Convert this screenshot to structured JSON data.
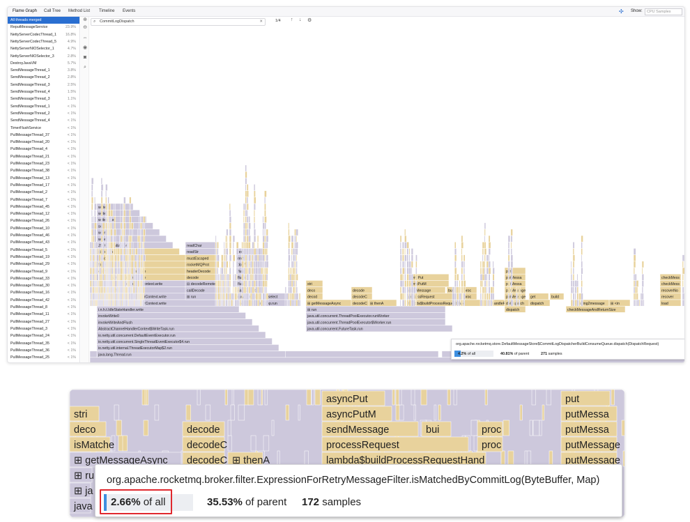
{
  "tabs": [
    "Flame Graph",
    "Call Tree",
    "Method List",
    "Timeline",
    "Events"
  ],
  "show": {
    "label": "Show:",
    "value": "CPU Samples"
  },
  "threads": [
    {
      "name": "All threads merged",
      "pct": ""
    },
    {
      "name": "ReputMessageService",
      "pct": "23.9%"
    },
    {
      "name": "NettyServerCodecThread_1",
      "pct": "16.8%"
    },
    {
      "name": "NettyServerCodecThread_5",
      "pct": "4.9%"
    },
    {
      "name": "NettyServerNIOSelector_1",
      "pct": "4.7%"
    },
    {
      "name": "NettyServerNIOSelector_3",
      "pct": "2.8%"
    },
    {
      "name": "DestroyJavaVM",
      "pct": "5.7%"
    },
    {
      "name": "SendMessageThread_1",
      "pct": "3.8%"
    },
    {
      "name": "SendMessageThread_2",
      "pct": "2.8%"
    },
    {
      "name": "SendMessageThread_3",
      "pct": "2.5%"
    },
    {
      "name": "SendMessageThread_4",
      "pct": "1.5%"
    },
    {
      "name": "SendMessageThread_3",
      "pct": "1.1%"
    },
    {
      "name": "SendMessageThread_1",
      "pct": "< 1%"
    },
    {
      "name": "SendMessageThread_2",
      "pct": "< 1%"
    },
    {
      "name": "SendMessageThread_4",
      "pct": "< 1%"
    },
    {
      "name": "TimerFlushService",
      "pct": "< 1%"
    },
    {
      "name": "PullMessageThread_37",
      "pct": "< 1%"
    },
    {
      "name": "PullMessageThread_20",
      "pct": "< 1%"
    },
    {
      "name": "PullMessageThread_4",
      "pct": "< 1%"
    },
    {
      "name": "PullMessageThread_21",
      "pct": "< 1%"
    },
    {
      "name": "PullMessageThread_23",
      "pct": "< 1%"
    },
    {
      "name": "PullMessageThread_38",
      "pct": "< 1%"
    },
    {
      "name": "PullMessageThread_13",
      "pct": "< 1%"
    },
    {
      "name": "PullMessageThread_17",
      "pct": "< 1%"
    },
    {
      "name": "PullMessageThread_2",
      "pct": "< 1%"
    },
    {
      "name": "PullMessageThread_7",
      "pct": "< 1%"
    },
    {
      "name": "PullMessageThread_45",
      "pct": "< 1%"
    },
    {
      "name": "PullMessageThread_12",
      "pct": "< 1%"
    },
    {
      "name": "PullMessageThread_26",
      "pct": "< 1%"
    },
    {
      "name": "PullMessageThread_10",
      "pct": "< 1%"
    },
    {
      "name": "PullMessageThread_46",
      "pct": "< 1%"
    },
    {
      "name": "PullMessageThread_43",
      "pct": "< 1%"
    },
    {
      "name": "PullMessageThread_5",
      "pct": "< 1%"
    },
    {
      "name": "PullMessageThread_19",
      "pct": "< 1%"
    },
    {
      "name": "PullMessageThread_29",
      "pct": "< 1%"
    },
    {
      "name": "PullMessageThread_9",
      "pct": "< 1%"
    },
    {
      "name": "PullMessageThread_33",
      "pct": "< 1%"
    },
    {
      "name": "PullMessageThread_30",
      "pct": "< 1%"
    },
    {
      "name": "PullMessageThread_16",
      "pct": "< 1%"
    },
    {
      "name": "PullMessageThread_42",
      "pct": "< 1%"
    },
    {
      "name": "PullMessageThread_8",
      "pct": "< 1%"
    },
    {
      "name": "PullMessageThread_11",
      "pct": "< 1%"
    },
    {
      "name": "PullMessageThread_27",
      "pct": "< 1%"
    },
    {
      "name": "PullMessageThread_3",
      "pct": "< 1%"
    },
    {
      "name": "PullMessageThread_24",
      "pct": "< 1%"
    },
    {
      "name": "PullMessageThread_35",
      "pct": "< 1%"
    },
    {
      "name": "PullMessageThread_36",
      "pct": "< 1%"
    },
    {
      "name": "PullMessageThread_25",
      "pct": "< 1%"
    }
  ],
  "search": {
    "value": "CommitLogDispatch"
  },
  "match_count": "1/4",
  "frames_left": [
    "write",
    "write",
    "writeValue",
    "set",
    "write",
    "write",
    "JSONSerializer.write",
    "⊞ toJson",
    "encode",
    "fastEncodeHeader",
    "o.a.r.r.n.NettyEncoder.encode",
    "o.a.r.r.n.NettyEncoder.encode",
    "⊞ AbstractChannelHandlerContext.write",
    "⊞ invokeWrite",
    "i.n.c.AbstractChannelHandlerContext.write",
    "i.n.c.AbstractChannelHandlerContext.write",
    "i.n.h.t.IdleStateHandler.write",
    "invokeWrite0",
    "invokeWriteAndFlush",
    "AbstractChannelHandlerContext$WriteTask.run",
    "io.netty.util.concurrent.DefaultEventExecutor.run",
    "io.netty.util.concurrent.SingleThreadEventExecutor$4.run",
    "io.netty.util.internal.ThreadExecutorMap$2.run",
    "java.lang.Thread.run"
  ],
  "frames_mid": [
    "readChar",
    "readStr",
    "mustEscaped",
    "rocketMQProt",
    "headerDecode",
    "decode",
    "⊟ decodeRemote",
    "callDecode",
    "⊞ run",
    "remo",
    "remotin",
    "doWrite",
    "flush0",
    "flush0",
    "flush",
    "safeExecute",
    "runAllTasks",
    "⊞ select",
    "i.n.c.n.NioEventLoop.run"
  ],
  "frames_right": [
    "stri",
    "deco",
    "decod",
    "⊞ getMessageAsync",
    "⊞ run",
    "java.util.concurrent.ThreadPoolExecutor.runWorker",
    "java.util.concurrent.ThreadPoolExecutor$Worker.run",
    "decode",
    "decodeC",
    "decodeC",
    "⊞ thenA",
    "java.util.concurrent.FutureTask.run",
    "asyncPut",
    "asyncPutM",
    "sendMessage",
    "bui",
    "proc",
    "processRequest",
    "proc",
    "lambda$buildProcessRequestHand",
    "handleR",
    "dispatch",
    "put",
    "putMessa",
    "putMessa",
    "putMessage",
    "putMessage",
    "get",
    "build",
    "dispatch",
    "string2message",
    "⊞ <in",
    "doDispatch",
    "checkMessageAndReturnSize",
    "checkMess",
    "checkMess",
    "recoverNo",
    "recover",
    "load"
  ],
  "tooltip_small": {
    "fn": "org.apache.rocketmq.store.DefaultMessageStore$CommitLogDispatcherBuildConsumeQueue.dispatch(DispatchRequest)",
    "of_all_value": "4.2%",
    "of_all_label": "of all",
    "of_parent_value": "40.81%",
    "of_parent_label": "of parent",
    "samples_value": "271",
    "samples_label": "samples",
    "fraction": 0.042
  },
  "zoom": {
    "frames": [
      "stri",
      "deco",
      "isMatche",
      "⊞ getMessageAsync",
      "⊞ ru",
      "⊞ ja",
      "java",
      "decode",
      "decodeC",
      "decodeC",
      "⊞ thenA",
      "asyncPut",
      "asyncPutM",
      "sendMessage",
      "bui",
      "proc",
      "processRequest",
      "proc",
      "lambda$buildProcessRequestHand",
      "put",
      "putMessa",
      "putMessa",
      "putMessage",
      "putMessage"
    ],
    "tooltip": {
      "fn": "org.apache.rocketmq.broker.filter.ExpressionForRetryMessageFilter.isMatchedByCommitLog(ByteBuffer, Map)",
      "of_all_value": "2.66%",
      "of_all_label": "of all",
      "of_parent_value": "35.53%",
      "of_parent_label": "of parent",
      "samples_value": "172",
      "samples_label": "samples",
      "fraction": 0.0266
    }
  },
  "colors": {
    "frame_yellow": "#e8d29c",
    "frame_lilac": "#cdc8dc",
    "highlight": "#e0282e",
    "select": "#2a6fd1"
  }
}
